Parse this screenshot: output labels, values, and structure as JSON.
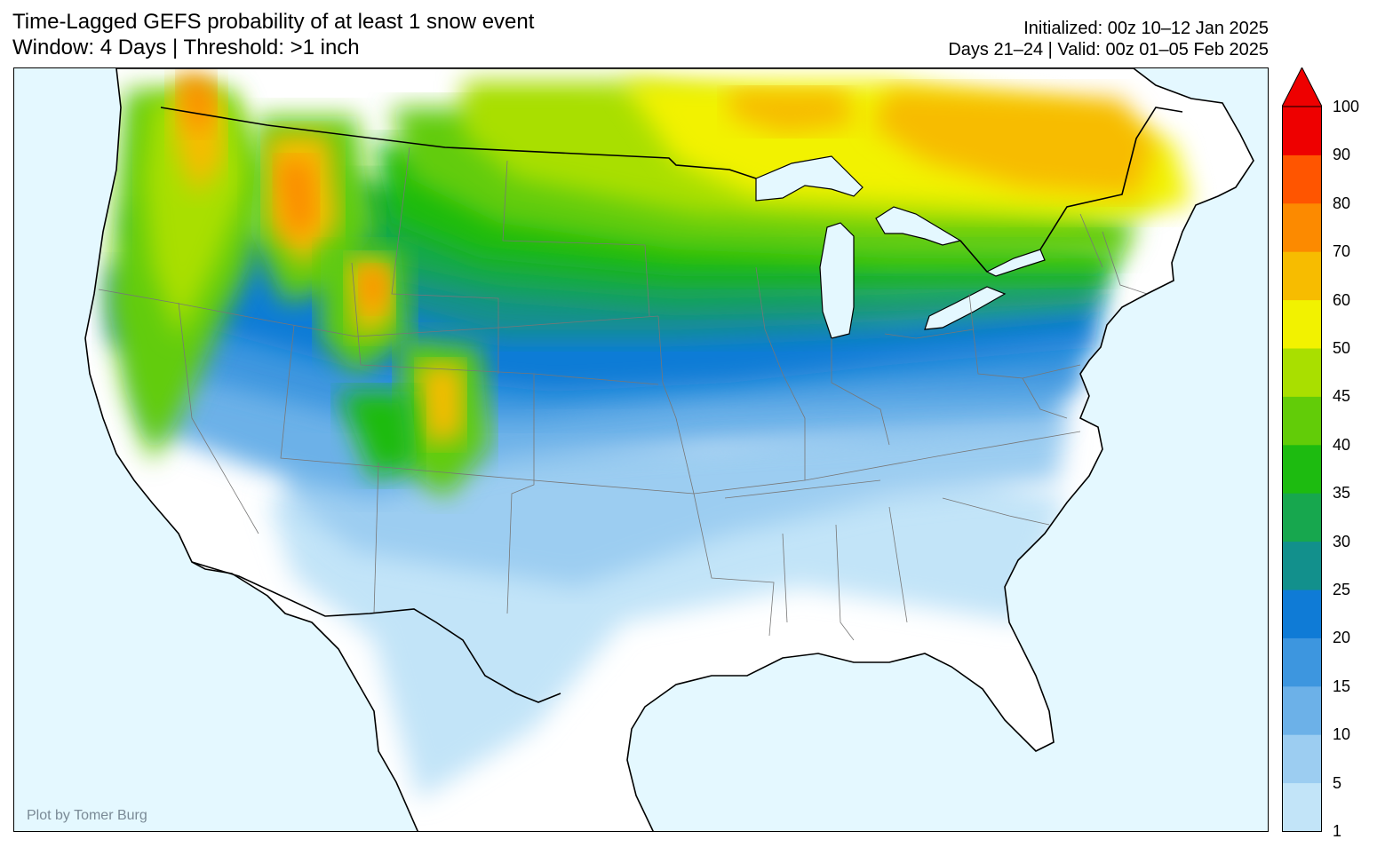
{
  "title": {
    "line1": "Time-Lagged GEFS probability of at least 1 snow event",
    "line2": "Window: 4 Days | Threshold: >1 inch"
  },
  "info": {
    "line1": "Initialized: 00z 10–12 Jan 2025",
    "line2": "Days 21–24 | Valid: 00z 01–05 Feb 2025"
  },
  "credit": "Plot by Tomer Burg",
  "colorbar": {
    "labels": [
      "1",
      "5",
      "10",
      "15",
      "20",
      "25",
      "30",
      "35",
      "40",
      "45",
      "50",
      "60",
      "70",
      "80",
      "90",
      "100"
    ],
    "colors": [
      "#c2e4f8",
      "#9ccdf1",
      "#6cb1e8",
      "#3d96df",
      "#0f7bd6",
      "#12908c",
      "#17a74e",
      "#1dbb10",
      "#62cc08",
      "#a9df00",
      "#f2f200",
      "#f7bc00",
      "#fc8a00",
      "#ff5500",
      "#ee0000"
    ],
    "extend_color": "#ee0000"
  },
  "map": {
    "ocean_color": "#e4f8ff",
    "land_color": "#ffffff"
  }
}
